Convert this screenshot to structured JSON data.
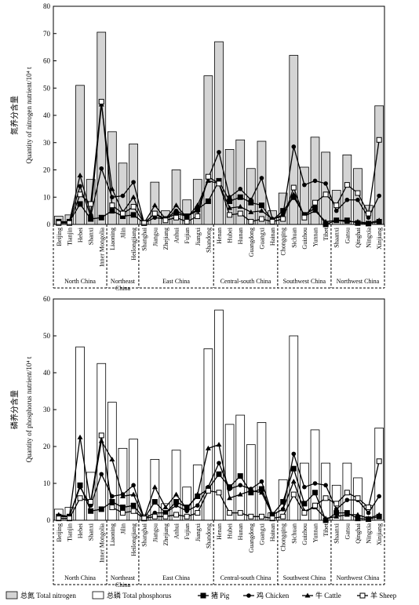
{
  "chart_data": [
    {
      "type": "bar-line",
      "y_label_cn": "氮养分含量",
      "y_label": "Quantity of nitrogen nutrient/10⁴ t",
      "ylim": [
        0,
        80
      ],
      "yticks": [
        0,
        10,
        20,
        30,
        40,
        50,
        60,
        70,
        80
      ],
      "groups": [
        {
          "name": "North China",
          "categories": [
            "Beijing",
            "Tianjin",
            "Hebei",
            "Shanxi",
            "Inner Mongolia"
          ]
        },
        {
          "name": "Northeast China",
          "categories": [
            "Liaoning",
            "Jilin",
            "Heilongjiang"
          ]
        },
        {
          "name": "East China",
          "categories": [
            "Shanghai",
            "Jiangsu",
            "Zhejiang",
            "Anhui",
            "Fujian",
            "Jiangxi",
            "Shandong"
          ]
        },
        {
          "name": "Central-south China",
          "categories": [
            "Henan",
            "Hubei",
            "Hunan",
            "Guangdong",
            "Guangxi",
            "Hainan"
          ]
        },
        {
          "name": "Southwest China",
          "categories": [
            "Chongqing",
            "Sichuan",
            "Guizhou",
            "Yunnan",
            "Tibet"
          ]
        },
        {
          "name": "Northwest China",
          "categories": [
            "Shaanxi",
            "Gansu",
            "Qinghai",
            "Ningxia",
            "Xinjiang"
          ]
        }
      ],
      "series": [
        {
          "name": "总氮 Total nitrogen",
          "kind": "bar",
          "color": "#d4d4d4",
          "values": [
            3,
            3.5,
            51,
            16.5,
            70.5,
            34,
            22.5,
            29.5,
            1.5,
            15.5,
            5,
            20,
            9,
            16.5,
            54.5,
            67,
            27.5,
            31,
            20.5,
            30.5,
            5,
            11.5,
            62,
            21,
            32,
            26.5,
            12.5,
            25.5,
            20.5,
            7,
            43.5
          ]
        },
        {
          "name": "猪 Pig",
          "kind": "line",
          "marker": "square",
          "color": "#000000",
          "values": [
            1,
            1,
            7.5,
            2,
            2.5,
            5,
            3,
            3.5,
            0.5,
            4,
            2,
            4,
            3,
            5.5,
            8.5,
            16,
            8.5,
            10,
            8,
            7,
            1.5,
            5,
            10,
            3.5,
            6,
            0,
            1.5,
            1.5,
            0.5,
            0.3,
            1
          ]
        },
        {
          "name": "鸡 Chicken",
          "kind": "line",
          "marker": "circle",
          "color": "#000000",
          "values": [
            0.5,
            1,
            14,
            3,
            20.5,
            10,
            10.5,
            15.5,
            0.5,
            2.5,
            2,
            5,
            3,
            5,
            17,
            26.5,
            10,
            13,
            9,
            17,
            2,
            3.5,
            28.5,
            14.5,
            16,
            15,
            5,
            9,
            9,
            2.5,
            10.5
          ]
        },
        {
          "name": "牛 Cattle",
          "kind": "line",
          "marker": "triangle",
          "color": "#000000",
          "values": [
            0.5,
            1,
            18,
            4,
            44,
            13,
            4.5,
            10,
            0.5,
            7,
            2,
            7,
            2.5,
            7,
            16,
            15,
            6,
            6.5,
            4.5,
            5,
            2,
            3,
            11,
            3,
            5,
            1,
            1.5,
            1,
            1,
            0.5,
            1.5
          ]
        },
        {
          "name": "羊 Sheep",
          "kind": "line",
          "marker": "open-square",
          "color": "#000000",
          "values": [
            0.5,
            0.5,
            11,
            7.5,
            45,
            7,
            4,
            6.5,
            0.5,
            4,
            1.5,
            2.5,
            1,
            3,
            17.5,
            15,
            3.5,
            4,
            1,
            2,
            1,
            2,
            13.5,
            2.5,
            8,
            11,
            7,
            14.5,
            11.5,
            4,
            31
          ]
        }
      ]
    },
    {
      "type": "bar-line",
      "y_label_cn": "磷养分含量",
      "y_label": "Quantity of phosphorus nutrient/10⁴ t",
      "ylim": [
        0,
        60
      ],
      "yticks": [
        0,
        10,
        20,
        30,
        40,
        50,
        60
      ],
      "groups": [
        {
          "name": "North China",
          "categories": [
            "Beijing",
            "Tianjin",
            "Hebei",
            "Shanxi",
            "Inner Mongolia"
          ]
        },
        {
          "name": "Northeast China",
          "categories": [
            "Liaoning",
            "Jilin",
            "Heilongjiang"
          ]
        },
        {
          "name": "East China",
          "categories": [
            "Shanghai",
            "Jiangsu",
            "Zhejiang",
            "Anhui",
            "Fujian",
            "Jiangxi",
            "Shandong"
          ]
        },
        {
          "name": "Central-south China",
          "categories": [
            "Henan",
            "Hubei",
            "Hunan",
            "Guangdong",
            "Guangxi",
            "Hainan"
          ]
        },
        {
          "name": "Southwest China",
          "categories": [
            "Chongqing",
            "Sichuan",
            "Guizhou",
            "Yunnan",
            "Tibet"
          ]
        },
        {
          "name": "Northwest China",
          "categories": [
            "Shaanxi",
            "Gansu",
            "Qinghai",
            "Ningxia",
            "Xinjiang"
          ]
        }
      ],
      "series": [
        {
          "name": "总磷 Total phosphorus",
          "kind": "bar",
          "color": "#ffffff",
          "values": [
            3,
            3.5,
            47,
            13,
            42.5,
            32,
            19.5,
            22,
            1.5,
            16.5,
            4.5,
            19,
            9,
            15,
            46.5,
            57,
            26,
            28.5,
            20.5,
            26.5,
            2,
            11,
            50,
            15.5,
            24.5,
            15.5,
            9.5,
            15.5,
            11.5,
            4,
            25
          ]
        },
        {
          "name": "猪 Pig",
          "kind": "line",
          "marker": "square",
          "color": "#000000",
          "values": [
            1,
            1,
            9.5,
            2.5,
            3,
            5,
            3.5,
            4,
            0.5,
            5,
            2,
            5,
            3.5,
            6.5,
            8.5,
            12.5,
            9,
            12,
            7.5,
            8.5,
            1.5,
            5,
            14,
            4.5,
            7.5,
            0,
            2,
            2,
            0.5,
            0.3,
            1
          ]
        },
        {
          "name": "鸡 Chicken",
          "kind": "line",
          "marker": "circle",
          "color": "#000000",
          "values": [
            1,
            1,
            9,
            4,
            12.5,
            6.5,
            7,
            9.5,
            0.5,
            2,
            2,
            4,
            2.5,
            4,
            9,
            15.5,
            8.5,
            9.5,
            8.5,
            10.5,
            1.5,
            3,
            18,
            9,
            10,
            9.5,
            3,
            5.5,
            5.5,
            2,
            6.5
          ]
        },
        {
          "name": "牛 Cattle",
          "kind": "line",
          "marker": "triangle",
          "color": "#000000",
          "values": [
            1.5,
            1,
            22.5,
            4.5,
            21.5,
            16.5,
            6.5,
            7,
            0.5,
            9,
            3.5,
            7,
            3,
            7,
            19.5,
            20.5,
            6,
            7,
            8,
            7.5,
            1.5,
            3,
            10.5,
            2.5,
            3.5,
            0.5,
            1,
            1.5,
            1.5,
            0.5,
            1.5
          ]
        },
        {
          "name": "羊 Sheep",
          "kind": "line",
          "marker": "open-square",
          "color": "#000000",
          "values": [
            0.5,
            0.5,
            6,
            5,
            23,
            3.5,
            2,
            2.5,
            0.5,
            1,
            1,
            1.5,
            1,
            2,
            8,
            7.5,
            2,
            2,
            1,
            1,
            0.5,
            1,
            7,
            2,
            4,
            6,
            4.5,
            7.5,
            6,
            3.5,
            16
          ]
        }
      ]
    }
  ]
}
